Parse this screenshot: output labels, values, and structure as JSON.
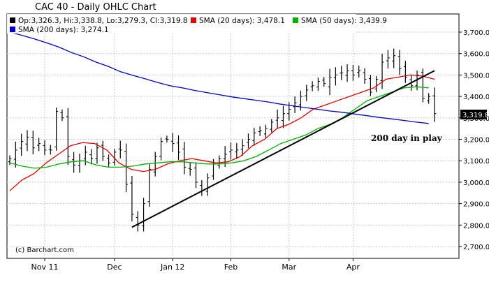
{
  "chart_data": {
    "type": "line",
    "title": "CAC 40 - Daily OHLC Chart",
    "legend": {
      "ohlc": "Op:3,326.3, Hi:3,338.8, Lo:3,279.3, Cl:3,319.8",
      "sma20": "SMA (20 days): 3,478.1",
      "sma50": "SMA (50 days): 3,439.9",
      "sma200": "SMA (200 days): 3,274.1",
      "placement": "top"
    },
    "colors": {
      "ohlc": "#000000",
      "sma20": "#e00000",
      "sma50": "#00b000",
      "sma200": "#0000cc",
      "trendline": "#000000",
      "grid": "#c8c8c8",
      "last_label_bg": "#000000"
    },
    "xlabels": [
      "Nov 11",
      "Dec",
      "Jan 12",
      "Feb",
      "Mar",
      "Apr"
    ],
    "yticks": [
      "3,700.0",
      "3,600.0",
      "3,500.0",
      "3,400.0",
      "3,300.0",
      "3,200.0",
      "3,100.0",
      "3,000.0",
      "2,900.0",
      "2,800.0",
      "2,700.0"
    ],
    "ylim": [
      2700,
      3700
    ],
    "grid": true,
    "last_price_label": "3,319.8",
    "annotation": "200 day in play",
    "credit": "(c) Barchart.com",
    "series": [
      {
        "name": "SMA (20 days)",
        "key": "sma20",
        "values": [
          2960,
          3010,
          3040,
          3090,
          3130,
          3170,
          3185,
          3180,
          3150,
          3090,
          3060,
          3050,
          3060,
          3085,
          3100,
          3110,
          3100,
          3090,
          3095,
          3120,
          3170,
          3200,
          3250,
          3270,
          3300,
          3340,
          3360,
          3380,
          3400,
          3420,
          3440,
          3480,
          3490,
          3500,
          3495,
          3480
        ]
      },
      {
        "name": "SMA (50 days)",
        "key": "sma50",
        "values": [
          3090,
          3075,
          3065,
          3070,
          3085,
          3095,
          3100,
          3080,
          3070,
          3070,
          3075,
          3085,
          3090,
          3095,
          3095,
          3090,
          3085,
          3085,
          3090,
          3100,
          3120,
          3150,
          3180,
          3200,
          3220,
          3250,
          3270,
          3300,
          3340,
          3380,
          3400,
          3420,
          3440,
          3445,
          3440
        ]
      },
      {
        "name": "SMA (200 days)",
        "key": "sma200",
        "values": [
          3700,
          3685,
          3668,
          3650,
          3630,
          3605,
          3585,
          3560,
          3540,
          3515,
          3498,
          3482,
          3465,
          3450,
          3440,
          3428,
          3418,
          3408,
          3398,
          3390,
          3382,
          3374,
          3364,
          3356,
          3348,
          3340,
          3332,
          3326,
          3318,
          3310,
          3302,
          3295,
          3288,
          3280,
          3274
        ]
      },
      {
        "name": "Trend line",
        "key": "trendline",
        "points": [
          [
            21,
            2790
          ],
          [
            73,
            3520
          ]
        ]
      }
    ],
    "ohlc": {
      "bar_count": 74,
      "closes": [
        3110,
        3150,
        3190,
        3210,
        3160,
        3180,
        3150,
        3150,
        3330,
        3300,
        3120,
        3080,
        3100,
        3140,
        3110,
        3160,
        3120,
        3090,
        3140,
        3150,
        2990,
        2850,
        2800,
        2900,
        3060,
        3120,
        3190,
        3200,
        3180,
        3140,
        3070,
        3060,
        3000,
        2960,
        3020,
        3090,
        3110,
        3130,
        3150,
        3150,
        3170,
        3200,
        3230,
        3240,
        3250,
        3280,
        3300,
        3320,
        3340,
        3370,
        3400,
        3430,
        3450,
        3470,
        3460,
        3490,
        3500,
        3510,
        3520,
        3500,
        3520,
        3480,
        3420,
        3480,
        3560,
        3580,
        3590,
        3530,
        3490,
        3450,
        3500,
        3390,
        3400,
        3320
      ]
    }
  }
}
